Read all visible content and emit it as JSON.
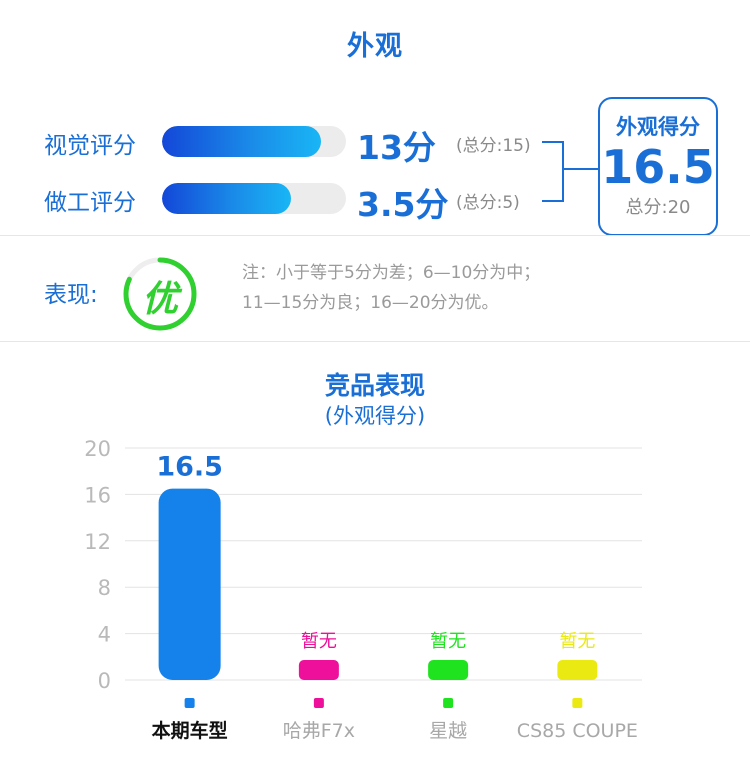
{
  "header": {
    "title": "外观"
  },
  "scores": {
    "rows": [
      {
        "label": "视觉评分",
        "value": 13,
        "value_text": "13分",
        "total_text": "(总分:15)",
        "fraction": 0.8667
      },
      {
        "label": "做工评分",
        "value": 3.5,
        "value_text": "3.5分",
        "total_text": "(总分:5)",
        "fraction": 0.7
      }
    ],
    "total": {
      "label": "外观得分",
      "value": "16.5",
      "sub": "总分:20"
    }
  },
  "rating": {
    "label": "表现:",
    "badge": "优",
    "note_line1": "注：小于等于5分为差；6—10分为中；",
    "note_line2": "11—15分为良；16—20分为优。",
    "badge_color": "#2fd02f",
    "badge_progress": 0.82
  },
  "chart": {
    "title": "竞品表现",
    "subtitle": "(外观得分)"
  },
  "chart_data": {
    "type": "bar",
    "categories": [
      "本期车型",
      "哈弗F7x",
      "星越",
      "CS85 COUPE"
    ],
    "values": [
      16.5,
      null,
      null,
      null
    ],
    "value_labels": [
      "16.5",
      "暂无",
      "暂无",
      "暂无"
    ],
    "colors": [
      "#1581ea",
      "#ee0f9b",
      "#1fe31f",
      "#eaea12"
    ],
    "yticks": [
      0,
      4,
      8,
      12,
      16,
      20
    ],
    "ylim": [
      0,
      20
    ],
    "grid": true
  }
}
